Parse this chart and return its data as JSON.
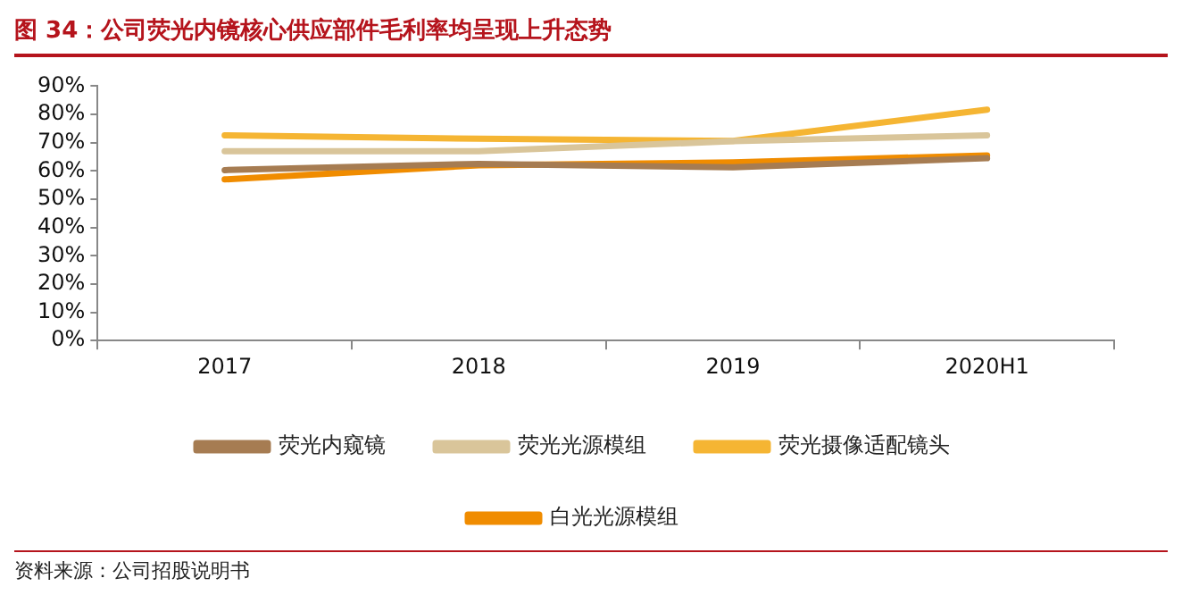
{
  "chart_data": {
    "type": "line",
    "title": "图 34：公司荧光内镜核心供应部件毛利率均呈现上升态势",
    "categories": [
      "2017",
      "2018",
      "2019",
      "2020H1"
    ],
    "series": [
      {
        "name": "荧光内窥镜",
        "color": "#a67c52",
        "values": [
          60.3,
          62.5,
          61.3,
          64.5
        ]
      },
      {
        "name": "荧光光源模组",
        "color": "#d9c59a",
        "values": [
          67,
          67,
          70.5,
          72.6
        ]
      },
      {
        "name": "荧光摄像适配镜头",
        "color": "#f5b533",
        "values": [
          72.6,
          71.4,
          70.6,
          81.7
        ]
      },
      {
        "name": "白光光源模组",
        "color": "#f08c00",
        "values": [
          57,
          62,
          63,
          65.5
        ]
      }
    ],
    "ylim": [
      0,
      90
    ],
    "yticks": [
      {
        "value": 0,
        "label": "0%"
      },
      {
        "value": 10,
        "label": "10%"
      },
      {
        "value": 20,
        "label": "20%"
      },
      {
        "value": 30,
        "label": "30%"
      },
      {
        "value": 40,
        "label": "40%"
      },
      {
        "value": 50,
        "label": "50%"
      },
      {
        "value": 60,
        "label": "60%"
      },
      {
        "value": 70,
        "label": "70%"
      },
      {
        "value": 80,
        "label": "80%"
      },
      {
        "value": 90,
        "label": "90%"
      }
    ],
    "grid": false,
    "legend": "bottom",
    "marker": "none",
    "line_style": "solid",
    "annotations": [
      "资料来源：公司招股说明书"
    ]
  }
}
